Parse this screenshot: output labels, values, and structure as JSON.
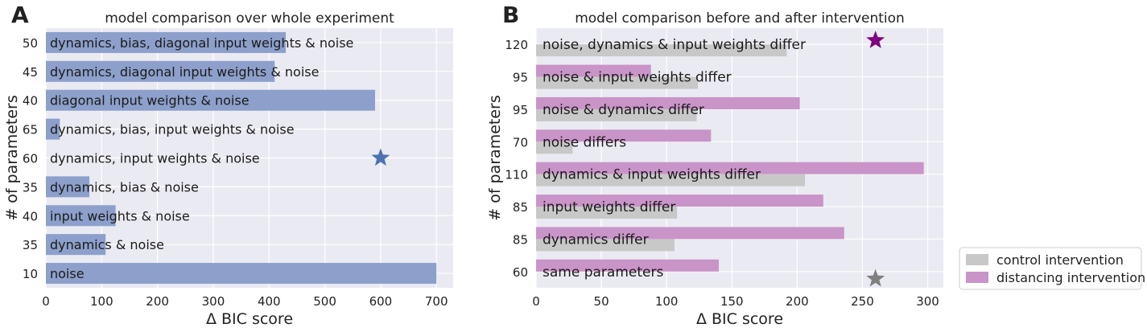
{
  "chart_data": [
    {
      "panel": "A",
      "type": "bar",
      "orientation": "horizontal",
      "title": "model comparison over whole experiment",
      "xlabel": "Δ BIC score",
      "ylabel": "# of parameters",
      "xlim": [
        0,
        730
      ],
      "xticks": [
        0,
        100,
        200,
        300,
        400,
        500,
        600,
        700
      ],
      "grid": true,
      "categories": [
        "dynamics, bias, diagonal input weights & noise",
        "dynamics, diagonal input weights & noise",
        "diagonal input weights & noise",
        "dynamics, bias, input weights & noise",
        "dynamics, input weights & noise",
        "dynamics, bias & noise",
        "input weights & noise",
        "dynamics & noise",
        "noise"
      ],
      "params": [
        "50",
        "45",
        "40",
        "65",
        "60",
        "35",
        "40",
        "35",
        "10"
      ],
      "values": [
        430,
        410,
        590,
        25,
        0,
        78,
        125,
        107,
        700
      ],
      "bar_color": "#8da0cb",
      "best_model": {
        "category_index": 4,
        "x": 600,
        "color": "#4c72b0"
      }
    },
    {
      "panel": "B",
      "type": "bar",
      "orientation": "horizontal",
      "title": "model comparison before and after intervention",
      "xlabel": "Δ BIC score",
      "ylabel": "# of parameters",
      "xlim": [
        0,
        312
      ],
      "xticks": [
        0,
        50,
        100,
        150,
        200,
        250,
        300
      ],
      "grid": true,
      "legend_position": "outside-bottom-right",
      "categories": [
        "noise, dynamics & input weights differ",
        "noise & input weights differ",
        "noise & dynamics differ",
        "noise differs",
        "dynamics & input weights differ",
        "input weights differ",
        "dynamics differ",
        "same parameters"
      ],
      "params": [
        "120",
        "95",
        "95",
        "70",
        "110",
        "85",
        "85",
        "60"
      ],
      "series": [
        {
          "name": "control intervention",
          "color": "#c8c8c8",
          "values": [
            192,
            124,
            123,
            28,
            206,
            108,
            106,
            0
          ]
        },
        {
          "name": "distancing intervention",
          "color": "#c994c7",
          "values": [
            0,
            88,
            202,
            134,
            297,
            220,
            236,
            140
          ]
        }
      ],
      "best_models": [
        {
          "series": "distancing intervention",
          "category_index": 0,
          "x": 260,
          "color": "#800080"
        },
        {
          "series": "control intervention",
          "category_index": 7,
          "x": 260,
          "color": "#808080"
        }
      ]
    }
  ],
  "panels": {
    "a_letter": "A",
    "b_letter": "B"
  }
}
